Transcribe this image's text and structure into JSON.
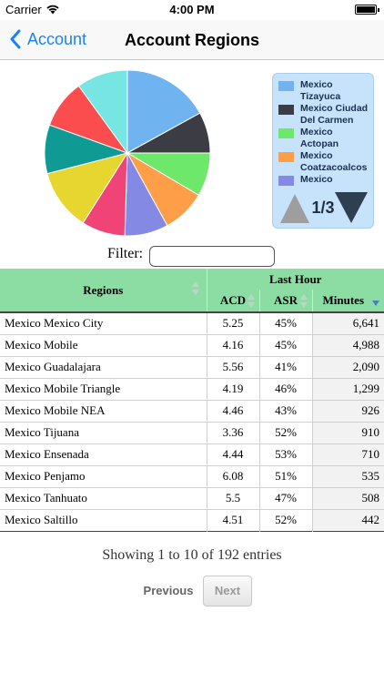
{
  "status_bar": {
    "carrier": "Carrier",
    "time": "4:00 PM"
  },
  "nav": {
    "back_label": "Account",
    "title": "Account Regions",
    "accent_color": "#1a82fb"
  },
  "chart_data": {
    "type": "pie",
    "slices": [
      {
        "color": "#6fb4f0",
        "value": 17.0
      },
      {
        "color": "#3c3d44",
        "value": 8.0
      },
      {
        "color": "#6de86a",
        "value": 8.5
      },
      {
        "color": "#fe9e49",
        "value": 8.5
      },
      {
        "color": "#8489e4",
        "value": 8.5
      },
      {
        "color": "#f04476",
        "value": 8.5
      },
      {
        "color": "#e7d530",
        "value": 12.0
      },
      {
        "color": "#0f9b94",
        "value": 9.5
      },
      {
        "color": "#fc4d4e",
        "value": 9.5
      },
      {
        "color": "#77e6e2",
        "value": 10.0
      }
    ],
    "legend_placement": "right"
  },
  "legend": {
    "items": [
      {
        "label": "Mexico Tizayuca",
        "color": "#6fb4f0"
      },
      {
        "label": "Mexico Ciudad Del Carmen",
        "color": "#3c3d44"
      },
      {
        "label": "Mexico Actopan",
        "color": "#6de86a"
      },
      {
        "label": "Mexico Coatzacoalcos",
        "color": "#fe9e49"
      },
      {
        "label": "Mexico",
        "color": "#8489e4"
      }
    ],
    "page": "1/3"
  },
  "filter": {
    "label": "Filter:",
    "value": ""
  },
  "table": {
    "group_header": "Last Hour",
    "columns": [
      "Regions",
      "ACD",
      "ASR",
      "Minutes"
    ],
    "rows": [
      [
        "Mexico Mexico City",
        "5.25",
        "45%",
        "6,641"
      ],
      [
        "Mexico Mobile",
        "4.16",
        "45%",
        "4,988"
      ],
      [
        "Mexico Guadalajara",
        "5.56",
        "41%",
        "2,090"
      ],
      [
        "Mexico Mobile Triangle",
        "4.19",
        "46%",
        "1,299"
      ],
      [
        "Mexico Mobile NEA",
        "4.46",
        "43%",
        "926"
      ],
      [
        "Mexico Tijuana",
        "3.36",
        "52%",
        "910"
      ],
      [
        "Mexico Ensenada",
        "4.44",
        "53%",
        "710"
      ],
      [
        "Mexico Penjamo",
        "6.08",
        "51%",
        "535"
      ],
      [
        "Mexico Tanhuato",
        "5.5",
        "47%",
        "508"
      ],
      [
        "Mexico Saltillo",
        "4.51",
        "52%",
        "442"
      ]
    ]
  },
  "pagination": {
    "info": "Showing 1 to 10 of 192 entries",
    "previous": "Previous",
    "next": "Next"
  }
}
